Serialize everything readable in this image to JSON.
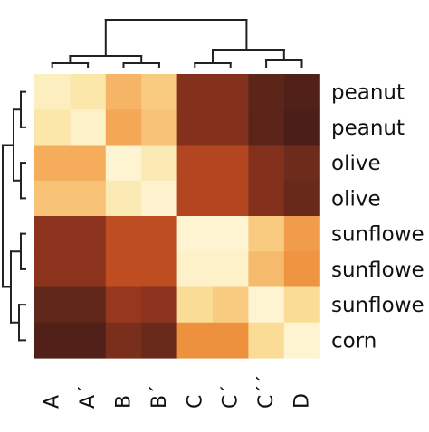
{
  "chart_data": {
    "type": "heatmap",
    "title": "",
    "xlabel": "",
    "ylabel": "",
    "row_labels": [
      "peanut",
      "peanut",
      "olive",
      "olive",
      "sunflowe",
      "sunflowe",
      "sunflowe",
      "corn"
    ],
    "col_labels": [
      "A",
      "A´",
      "B",
      "B´",
      "C",
      "C´",
      "C´´",
      "D"
    ],
    "values": [
      [
        0.08,
        0.12,
        0.25,
        0.2,
        0.8,
        0.8,
        0.92,
        0.97
      ],
      [
        0.12,
        0.06,
        0.28,
        0.22,
        0.8,
        0.8,
        0.93,
        1.0
      ],
      [
        0.27,
        0.27,
        0.04,
        0.1,
        0.67,
        0.67,
        0.8,
        0.85
      ],
      [
        0.22,
        0.22,
        0.1,
        0.05,
        0.67,
        0.67,
        0.8,
        0.87
      ],
      [
        0.78,
        0.78,
        0.63,
        0.63,
        0.04,
        0.04,
        0.2,
        0.32
      ],
      [
        0.78,
        0.78,
        0.63,
        0.63,
        0.06,
        0.06,
        0.24,
        0.35
      ],
      [
        0.9,
        0.9,
        0.75,
        0.78,
        0.16,
        0.2,
        0.04,
        0.16
      ],
      [
        0.97,
        0.97,
        0.82,
        0.86,
        0.36,
        0.36,
        0.16,
        0.04
      ]
    ],
    "colormap": [
      "#fffbe6",
      "#fbe3a0",
      "#f4a653",
      "#e87e2c",
      "#cf5a24",
      "#a63b1e",
      "#6b2a1b",
      "#4a1f18"
    ],
    "legend": false,
    "grid": false,
    "dendrograms": [
      "top",
      "left"
    ]
  }
}
